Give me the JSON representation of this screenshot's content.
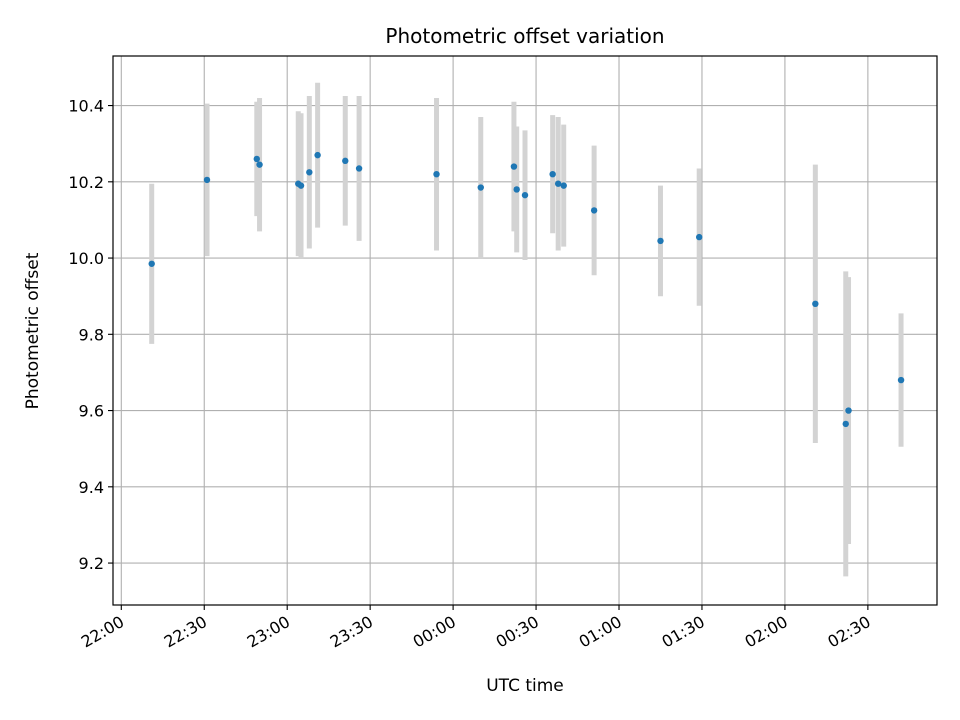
{
  "chart_data": {
    "type": "scatter",
    "title": "Photometric offset variation",
    "xlabel": "UTC time",
    "ylabel": "Photometric offset",
    "x_unit": "UTC time (HH:MM, day 1 from 22:00, day 2 after 00:00)",
    "xlim": [
      "21:57",
      "02:55"
    ],
    "ylim": [
      9.09,
      10.53
    ],
    "x_ticks": [
      "22:00",
      "22:30",
      "23:00",
      "23:30",
      "00:00",
      "00:30",
      "01:00",
      "01:30",
      "02:00",
      "02:30"
    ],
    "y_ticks": [
      "9.2",
      "9.4",
      "9.6",
      "9.8",
      "10.0",
      "10.2",
      "10.4"
    ],
    "grid": true,
    "marker_color": "#1f77b4",
    "errorbar_color": "#d3d3d3",
    "series": [
      {
        "points": [
          {
            "x": "22:11",
            "y": 9.985,
            "err": 0.21
          },
          {
            "x": "22:31",
            "y": 10.205,
            "err": 0.2
          },
          {
            "x": "22:49",
            "y": 10.26,
            "err": 0.15
          },
          {
            "x": "22:50",
            "y": 10.245,
            "err": 0.175
          },
          {
            "x": "23:04",
            "y": 10.195,
            "err": 0.19
          },
          {
            "x": "23:05",
            "y": 10.19,
            "err": 0.19
          },
          {
            "x": "23:08",
            "y": 10.225,
            "err": 0.2
          },
          {
            "x": "23:11",
            "y": 10.27,
            "err": 0.19
          },
          {
            "x": "23:21",
            "y": 10.255,
            "err": 0.17
          },
          {
            "x": "23:26",
            "y": 10.235,
            "err": 0.19
          },
          {
            "x": "23:54",
            "y": 10.22,
            "err": 0.2
          },
          {
            "x": "00:10",
            "y": 10.185,
            "err": 0.185
          },
          {
            "x": "00:22",
            "y": 10.24,
            "err": 0.17
          },
          {
            "x": "00:23",
            "y": 10.18,
            "err": 0.165
          },
          {
            "x": "00:26",
            "y": 10.165,
            "err": 0.17
          },
          {
            "x": "00:36",
            "y": 10.22,
            "err": 0.155
          },
          {
            "x": "00:38",
            "y": 10.195,
            "err": 0.175
          },
          {
            "x": "00:40",
            "y": 10.19,
            "err": 0.16
          },
          {
            "x": "00:51",
            "y": 10.125,
            "err": 0.17
          },
          {
            "x": "01:15",
            "y": 10.045,
            "err": 0.145
          },
          {
            "x": "01:29",
            "y": 10.055,
            "err": 0.18
          },
          {
            "x": "02:11",
            "y": 9.88,
            "err": 0.365
          },
          {
            "x": "02:22",
            "y": 9.565,
            "err": 0.4
          },
          {
            "x": "02:23",
            "y": 9.6,
            "err": 0.35
          },
          {
            "x": "02:42",
            "y": 9.68,
            "err": 0.175
          }
        ]
      }
    ]
  }
}
